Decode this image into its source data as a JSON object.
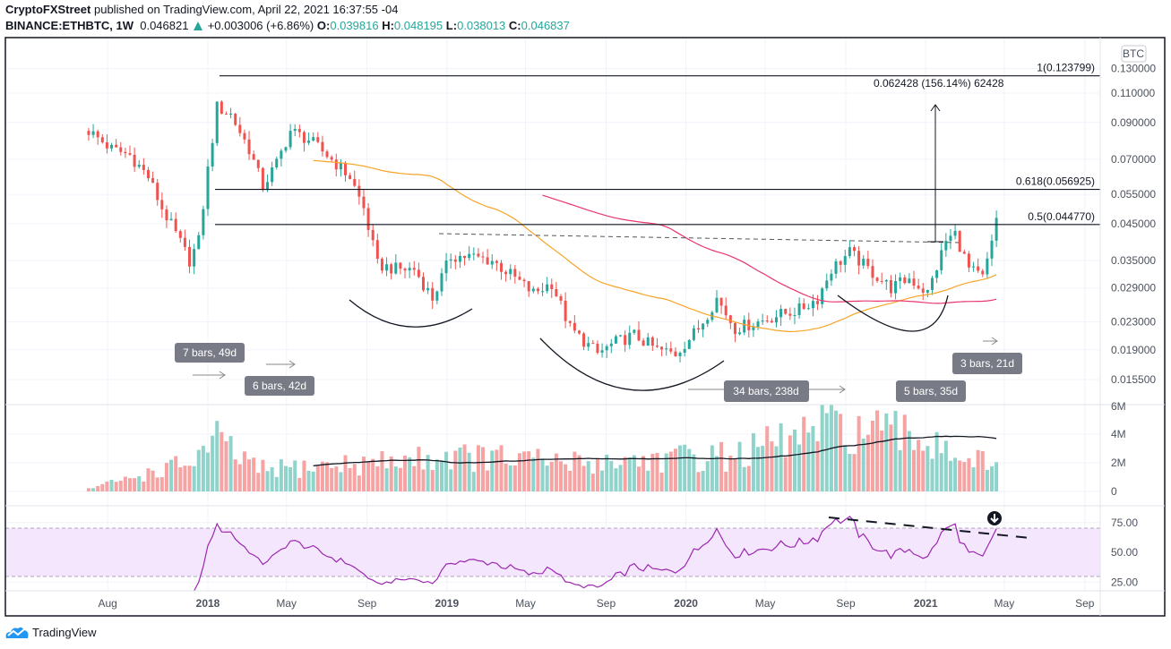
{
  "header": {
    "author": "CryptoFXStreet",
    "published": "published on TradingView.com, April 22, 2021 16:37:55 -04",
    "symbol": "BINANCE:ETHBTC, 1W",
    "last": "0.046821",
    "change": "+0.003006 (+6.86%)",
    "open_label": "O:",
    "open": "0.039816",
    "high_label": "H:",
    "high": "0.048195",
    "low_label": "L:",
    "low": "0.038013",
    "close_label": "C:",
    "close": "0.046837"
  },
  "currency_badge": "BTC",
  "footer": {
    "brand": "TradingView",
    "logo_icon": "tradingview-cloud-icon"
  },
  "colors": {
    "up": "#26a69a",
    "down": "#ef5350",
    "vol_up": "#8fd3cb",
    "vol_down": "#f5a3a3",
    "ma_fast": "#f7a428",
    "ma_slow": "#e8366d",
    "rsi": "#9c27b0",
    "rsi_band": "#f3e6fd",
    "label_box": "#787b86"
  },
  "chart_data": {
    "type": "candlestick",
    "scale": "log",
    "grid": true,
    "price_axis": {
      "ticks": [
        "0.130000",
        "0.110000",
        "0.090000",
        "0.070000",
        "0.055000",
        "0.045000",
        "0.035000",
        "0.029000",
        "0.023000",
        "0.019000",
        "0.015500"
      ]
    },
    "time_axis": {
      "ticks": [
        {
          "label": "Aug",
          "date": "2017-08-01",
          "bold": false
        },
        {
          "label": "2018",
          "date": "2018-01-01",
          "bold": true
        },
        {
          "label": "May",
          "date": "2018-05-01",
          "bold": false
        },
        {
          "label": "Sep",
          "date": "2018-09-01",
          "bold": false
        },
        {
          "label": "2019",
          "date": "2019-01-01",
          "bold": true
        },
        {
          "label": "May",
          "date": "2019-05-01",
          "bold": false
        },
        {
          "label": "Sep",
          "date": "2019-09-01",
          "bold": false
        },
        {
          "label": "2020",
          "date": "2020-01-01",
          "bold": true
        },
        {
          "label": "May",
          "date": "2020-05-01",
          "bold": false
        },
        {
          "label": "Sep",
          "date": "2020-09-01",
          "bold": false
        },
        {
          "label": "2021",
          "date": "2021-01-01",
          "bold": true
        },
        {
          "label": "May",
          "date": "2021-05-01",
          "bold": false
        },
        {
          "label": "Sep",
          "date": "2021-09-01",
          "bold": false
        }
      ]
    },
    "weekly_close_path": [
      [
        "2017-07-03",
        0.085
      ],
      [
        "2017-08-07",
        0.075
      ],
      [
        "2017-09-04",
        0.072
      ],
      [
        "2017-10-02",
        0.062
      ],
      [
        "2017-10-23",
        0.05
      ],
      [
        "2017-11-13",
        0.042
      ],
      [
        "2017-12-04",
        0.035
      ],
      [
        "2017-12-18",
        0.04
      ],
      [
        "2018-01-01",
        0.065
      ],
      [
        "2018-01-15",
        0.1
      ],
      [
        "2018-02-05",
        0.095
      ],
      [
        "2018-03-05",
        0.075
      ],
      [
        "2018-03-26",
        0.058
      ],
      [
        "2018-04-16",
        0.068
      ],
      [
        "2018-05-07",
        0.085
      ],
      [
        "2018-06-04",
        0.08
      ],
      [
        "2018-07-02",
        0.072
      ],
      [
        "2018-08-06",
        0.062
      ],
      [
        "2018-08-27",
        0.05
      ],
      [
        "2018-09-17",
        0.034
      ],
      [
        "2018-10-15",
        0.033
      ],
      [
        "2018-11-12",
        0.033
      ],
      [
        "2018-12-10",
        0.027
      ],
      [
        "2019-01-07",
        0.036
      ],
      [
        "2019-02-04",
        0.036
      ],
      [
        "2019-03-11",
        0.035
      ],
      [
        "2019-04-15",
        0.031
      ],
      [
        "2019-05-13",
        0.028
      ],
      [
        "2019-06-10",
        0.03
      ],
      [
        "2019-07-08",
        0.022
      ],
      [
        "2019-08-19",
        0.0185
      ],
      [
        "2019-09-16",
        0.02
      ],
      [
        "2019-10-14",
        0.021
      ],
      [
        "2019-11-18",
        0.019
      ],
      [
        "2019-12-16",
        0.0185
      ],
      [
        "2020-01-20",
        0.022
      ],
      [
        "2020-02-17",
        0.027
      ],
      [
        "2020-03-16",
        0.022
      ],
      [
        "2020-04-20",
        0.023
      ],
      [
        "2020-05-18",
        0.024
      ],
      [
        "2020-06-22",
        0.025
      ],
      [
        "2020-07-20",
        0.027
      ],
      [
        "2020-08-10",
        0.033
      ],
      [
        "2020-09-07",
        0.037
      ],
      [
        "2020-10-05",
        0.033
      ],
      [
        "2020-11-09",
        0.029
      ],
      [
        "2020-12-07",
        0.031
      ],
      [
        "2021-01-04",
        0.028
      ],
      [
        "2021-02-01",
        0.04
      ],
      [
        "2021-02-15",
        0.042
      ],
      [
        "2021-03-08",
        0.033
      ],
      [
        "2021-03-29",
        0.031
      ],
      [
        "2021-04-12",
        0.039
      ],
      [
        "2021-04-19",
        0.046837
      ]
    ],
    "moving_averages": [
      {
        "period_weeks": 50,
        "color": "#f7a428"
      },
      {
        "period_weeks": 100,
        "color": "#e8366d"
      }
    ],
    "volume": {
      "axis_ticks": [
        "6M",
        "4M",
        "2M",
        "0"
      ],
      "path_millions": [
        [
          "2017-07-03",
          0.2
        ],
        [
          "2017-12-04",
          2.0
        ],
        [
          "2018-01-15",
          3.5
        ],
        [
          "2018-03-19",
          1.5
        ],
        [
          "2018-09-17",
          2.0
        ],
        [
          "2019-01-07",
          2.5
        ],
        [
          "2019-07-08",
          2.0
        ],
        [
          "2020-03-16",
          2.5
        ],
        [
          "2020-08-10",
          4.5
        ],
        [
          "2021-01-18",
          3.5
        ],
        [
          "2021-04-19",
          1.5
        ]
      ],
      "ma_period_weeks": 50
    },
    "rsi": {
      "period": 14,
      "axis_ticks": [
        "75.00",
        "50.00",
        "25.00"
      ],
      "band": [
        30,
        70
      ]
    },
    "drawings": {
      "fib_levels": [
        {
          "text": "1(0.123799)",
          "price": 0.123799
        },
        {
          "text": "0.618(0.056925)",
          "price": 0.056925
        },
        {
          "text": "0.5(0.044770)",
          "price": 0.04477
        }
      ],
      "measure_label": "0.062428 (156.14%) 62428",
      "bar_counts": [
        "7 bars, 49d",
        "6 bars, 42d",
        "34 bars, 238d",
        "5 bars, 35d",
        "3 bars, 21d"
      ]
    }
  }
}
